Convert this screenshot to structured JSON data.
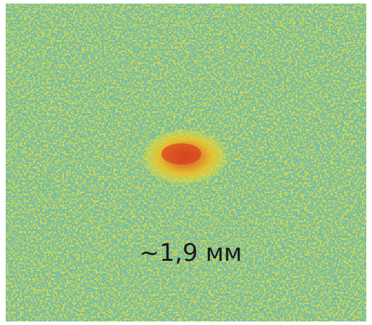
{
  "image": {
    "label": "~1,9 мм"
  }
}
